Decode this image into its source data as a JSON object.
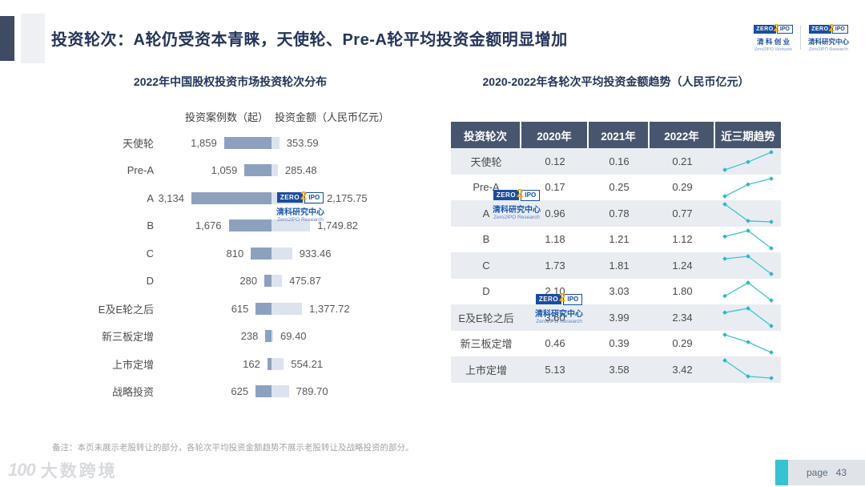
{
  "page": {
    "title": "投资轮次：A轮仍受资本青睐，天使轮、Pre-A轮平均投资金额明显增加",
    "footnote": "备注：本页未展示老股转让的部分，各轮次平均投资金额趋势不展示老股转让及战略投资的部分。",
    "footer": {
      "brand_icon": "100",
      "brand": "大数跨境",
      "page_label": "page",
      "page_number": "43"
    }
  },
  "logos": {
    "ventures": {
      "zero": "ZERO",
      "two": "2",
      "ipo": "IPO",
      "cn": "清 科 创 业",
      "en": "Zero2IPO Ventures"
    },
    "research": {
      "zero": "ZERO",
      "two": "2",
      "ipo": "IPO",
      "cn": "清科研究中心",
      "en": "Zero2IPO Research"
    }
  },
  "watermark": {
    "zero": "ZERO",
    "two": "2",
    "ipo": "IPO",
    "cn": "清科研究中心",
    "en": "Zero2IPO Research"
  },
  "chart_data": [
    {
      "type": "bar",
      "title": "2022年中国股权投资市场投资轮次分布",
      "orientation": "horizontal-tornado",
      "col_headers": [
        "投资案例数（起）",
        "投资金额（人民币亿元）"
      ],
      "categories": [
        "天使轮",
        "Pre-A",
        "A",
        "B",
        "C",
        "D",
        "E及E轮之后",
        "新三板定增",
        "上市定增",
        "战略投资"
      ],
      "series": [
        {
          "name": "投资案例数（起）",
          "values": [
            1859,
            1059,
            3134,
            1676,
            810,
            280,
            615,
            238,
            162,
            625
          ],
          "labels": [
            "1,859",
            "1,059",
            "3,134",
            "1,676",
            "810",
            "280",
            "615",
            "238",
            "162",
            "625"
          ]
        },
        {
          "name": "投资金额（人民币亿元）",
          "values": [
            353.59,
            285.48,
            2175.75,
            1749.82,
            933.46,
            475.87,
            1377.72,
            69.4,
            554.21,
            789.7
          ],
          "labels": [
            "353.59",
            "285.48",
            "2,175.75",
            "1,749.82",
            "933.46",
            "475.87",
            "1,377.72",
            "69.40",
            "554.21",
            "789.70"
          ]
        }
      ]
    },
    {
      "type": "table",
      "title": "2020-2022年各轮次平均投资金额趋势（人民币亿元）",
      "columns": [
        "投资轮次",
        "2020年",
        "2021年",
        "2022年",
        "近三期趋势"
      ],
      "sparkline_column": "近三期趋势",
      "rows": [
        {
          "label": "天使轮",
          "values": [
            0.12,
            0.16,
            0.21
          ],
          "display": [
            "0.12",
            "0.16",
            "0.21"
          ]
        },
        {
          "label": "Pre-A",
          "values": [
            0.17,
            0.25,
            0.29
          ],
          "display": [
            "0.17",
            "0.25",
            "0.29"
          ]
        },
        {
          "label": "A",
          "values": [
            0.96,
            0.78,
            0.77
          ],
          "display": [
            "0.96",
            "0.78",
            "0.77"
          ]
        },
        {
          "label": "B",
          "values": [
            1.18,
            1.21,
            1.12
          ],
          "display": [
            "1.18",
            "1.21",
            "1.12"
          ]
        },
        {
          "label": "C",
          "values": [
            1.73,
            1.81,
            1.24
          ],
          "display": [
            "1.73",
            "1.81",
            "1.24"
          ]
        },
        {
          "label": "D",
          "values": [
            2.1,
            3.03,
            1.8
          ],
          "display": [
            "2.10",
            "3.03",
            "1.80"
          ]
        },
        {
          "label": "E及E轮之后",
          "values": [
            3.6,
            3.99,
            2.34
          ],
          "display": [
            "3.60",
            "3.99",
            "2.34"
          ]
        },
        {
          "label": "新三板定增",
          "values": [
            0.46,
            0.39,
            0.29
          ],
          "display": [
            "0.46",
            "0.39",
            "0.29"
          ]
        },
        {
          "label": "上市定增",
          "values": [
            5.13,
            3.58,
            3.42
          ],
          "display": [
            "5.13",
            "3.58",
            "3.42"
          ]
        }
      ]
    }
  ],
  "colors": {
    "title": "#23355a",
    "bar_count": "#8da1bf",
    "bar_amount": "#dce3ee",
    "table_header_bg": "#47566e",
    "table_row_alt_bg": "#e9edf2",
    "sparkline": "#3fc4cf",
    "sparkline_dot": "#2fb5c6",
    "logo_blue": "#1b4d9e",
    "logo_orange": "#f7a600",
    "page_accent_teal": "#35c3d1"
  }
}
